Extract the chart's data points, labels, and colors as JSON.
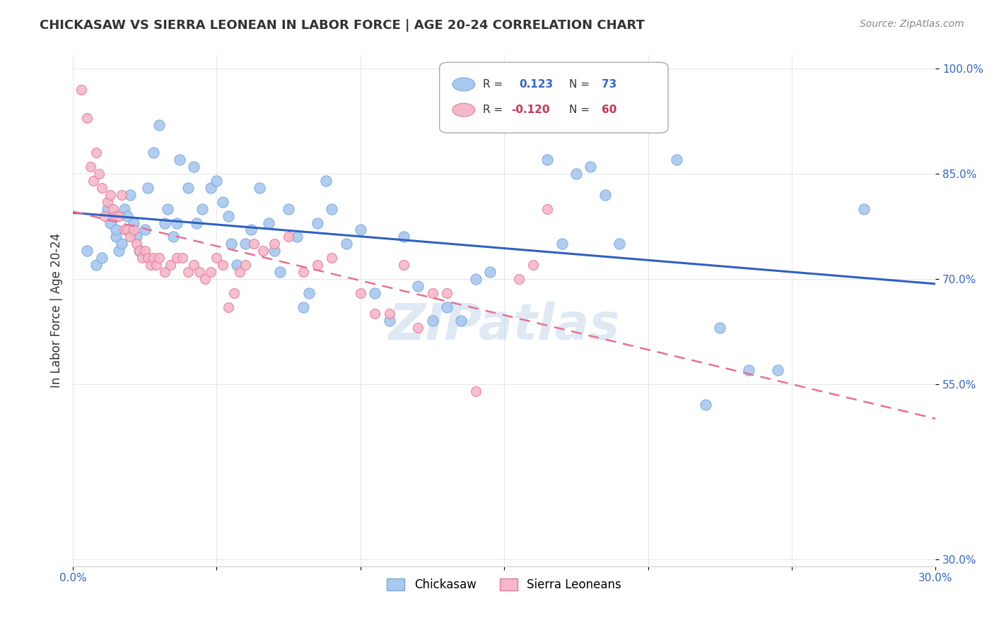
{
  "title": "CHICKASAW VS SIERRA LEONEAN IN LABOR FORCE | AGE 20-24 CORRELATION CHART",
  "source": "Source: ZipAtlas.com",
  "ylabel": "In Labor Force | Age 20-24",
  "xlim": [
    0.0,
    0.3
  ],
  "ylim": [
    0.29,
    1.02
  ],
  "xticks": [
    0.0,
    0.05,
    0.1,
    0.15,
    0.2,
    0.25,
    0.3
  ],
  "yticks": [
    0.3,
    0.55,
    0.7,
    0.85,
    1.0
  ],
  "ytick_labels": [
    "30.0%",
    "55.0%",
    "70.0%",
    "85.0%",
    "100.0%"
  ],
  "xtick_labels": [
    "0.0%",
    "",
    "",
    "",
    "",
    "",
    "30.0%"
  ],
  "blue_color": "#a8c8f0",
  "blue_edge": "#7aabde",
  "pink_color": "#f5b8c8",
  "pink_edge": "#e87a9a",
  "trend_blue": "#3060c0",
  "trend_pink": "#e87090",
  "legend_R_blue": "0.123",
  "legend_N_blue": "73",
  "legend_R_pink": "-0.120",
  "legend_N_pink": "60",
  "watermark": "ZIPatlas",
  "blue_x": [
    0.005,
    0.008,
    0.01,
    0.012,
    0.013,
    0.015,
    0.015,
    0.016,
    0.017,
    0.018,
    0.019,
    0.02,
    0.02,
    0.021,
    0.022,
    0.023,
    0.025,
    0.026,
    0.028,
    0.03,
    0.032,
    0.033,
    0.035,
    0.036,
    0.037,
    0.04,
    0.042,
    0.043,
    0.045,
    0.048,
    0.05,
    0.052,
    0.054,
    0.055,
    0.057,
    0.06,
    0.062,
    0.065,
    0.068,
    0.07,
    0.072,
    0.075,
    0.078,
    0.08,
    0.082,
    0.085,
    0.088,
    0.09,
    0.095,
    0.1,
    0.105,
    0.11,
    0.115,
    0.12,
    0.125,
    0.13,
    0.135,
    0.14,
    0.145,
    0.15,
    0.155,
    0.165,
    0.17,
    0.175,
    0.18,
    0.185,
    0.19,
    0.21,
    0.22,
    0.225,
    0.235,
    0.245,
    0.275
  ],
  "blue_y": [
    0.74,
    0.72,
    0.73,
    0.8,
    0.78,
    0.76,
    0.77,
    0.74,
    0.75,
    0.8,
    0.79,
    0.77,
    0.82,
    0.78,
    0.76,
    0.74,
    0.77,
    0.83,
    0.88,
    0.92,
    0.78,
    0.8,
    0.76,
    0.78,
    0.87,
    0.83,
    0.86,
    0.78,
    0.8,
    0.83,
    0.84,
    0.81,
    0.79,
    0.75,
    0.72,
    0.75,
    0.77,
    0.83,
    0.78,
    0.74,
    0.71,
    0.8,
    0.76,
    0.66,
    0.68,
    0.78,
    0.84,
    0.8,
    0.75,
    0.77,
    0.68,
    0.64,
    0.76,
    0.69,
    0.64,
    0.66,
    0.64,
    0.7,
    0.71,
    0.95,
    0.93,
    0.87,
    0.75,
    0.85,
    0.86,
    0.82,
    0.75,
    0.87,
    0.52,
    0.63,
    0.57,
    0.57,
    0.8
  ],
  "pink_x": [
    0.003,
    0.005,
    0.006,
    0.007,
    0.008,
    0.009,
    0.01,
    0.011,
    0.012,
    0.013,
    0.014,
    0.015,
    0.016,
    0.017,
    0.018,
    0.019,
    0.02,
    0.021,
    0.022,
    0.023,
    0.024,
    0.025,
    0.026,
    0.027,
    0.028,
    0.029,
    0.03,
    0.032,
    0.034,
    0.036,
    0.038,
    0.04,
    0.042,
    0.044,
    0.046,
    0.048,
    0.05,
    0.052,
    0.054,
    0.056,
    0.058,
    0.06,
    0.063,
    0.066,
    0.07,
    0.075,
    0.08,
    0.085,
    0.09,
    0.1,
    0.105,
    0.11,
    0.115,
    0.12,
    0.125,
    0.13,
    0.14,
    0.155,
    0.16,
    0.165
  ],
  "pink_y": [
    0.97,
    0.93,
    0.86,
    0.84,
    0.88,
    0.85,
    0.83,
    0.79,
    0.81,
    0.82,
    0.8,
    0.79,
    0.79,
    0.82,
    0.77,
    0.77,
    0.76,
    0.77,
    0.75,
    0.74,
    0.73,
    0.74,
    0.73,
    0.72,
    0.73,
    0.72,
    0.73,
    0.71,
    0.72,
    0.73,
    0.73,
    0.71,
    0.72,
    0.71,
    0.7,
    0.71,
    0.73,
    0.72,
    0.66,
    0.68,
    0.71,
    0.72,
    0.75,
    0.74,
    0.75,
    0.76,
    0.71,
    0.72,
    0.73,
    0.68,
    0.65,
    0.65,
    0.72,
    0.63,
    0.68,
    0.68,
    0.54,
    0.7,
    0.72,
    0.8
  ]
}
